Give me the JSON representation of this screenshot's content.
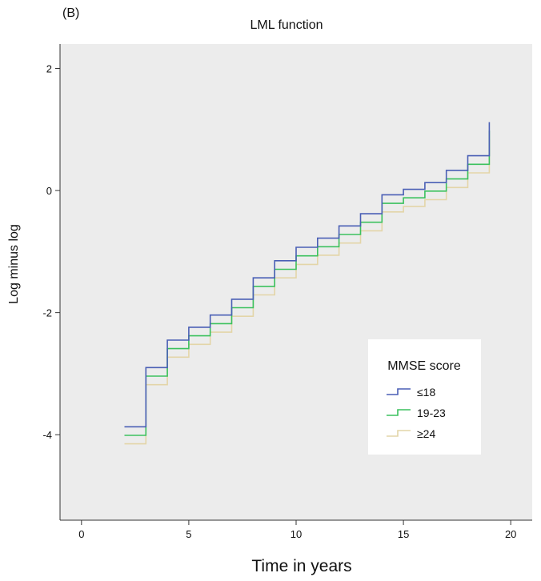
{
  "panel_label": "(B)",
  "chart_data": {
    "type": "line",
    "step": true,
    "title": "LML function",
    "xlabel": "Time in years",
    "ylabel": "Log minus log",
    "xlim": [
      -1,
      21
    ],
    "ylim": [
      -5.4,
      2.4
    ],
    "xticks": [
      0,
      5,
      10,
      15,
      20
    ],
    "yticks": [
      2,
      0,
      -2,
      -4
    ],
    "grid": false,
    "background": "#ececec",
    "legend": {
      "title": "MMSE score",
      "position": "bottom-right"
    },
    "x": [
      2,
      3,
      4,
      5,
      6,
      7,
      8,
      9,
      10,
      11,
      12,
      13,
      14,
      15,
      16,
      17,
      18,
      19
    ],
    "end_x": 19,
    "series": [
      {
        "name": "≤18",
        "color": "#4a5fb5",
        "values": [
          -3.87,
          -2.9,
          -2.45,
          -2.24,
          -2.04,
          -1.78,
          -1.43,
          -1.15,
          -0.93,
          -0.78,
          -0.58,
          -0.38,
          -0.07,
          0.02,
          0.13,
          0.33,
          0.57,
          1.12
        ]
      },
      {
        "name": "19-23",
        "color": "#3cc15e",
        "values": [
          -4.01,
          -3.04,
          -2.59,
          -2.38,
          -2.18,
          -1.92,
          -1.57,
          -1.29,
          -1.07,
          -0.92,
          -0.72,
          -0.52,
          -0.21,
          -0.12,
          -0.01,
          0.19,
          0.43,
          0.98
        ]
      },
      {
        "name": "≥24",
        "color": "#e3d5a8",
        "values": [
          -4.15,
          -3.18,
          -2.73,
          -2.52,
          -2.32,
          -2.06,
          -1.71,
          -1.43,
          -1.21,
          -1.06,
          -0.86,
          -0.66,
          -0.35,
          -0.26,
          -0.15,
          0.05,
          0.29,
          0.84
        ]
      }
    ]
  }
}
